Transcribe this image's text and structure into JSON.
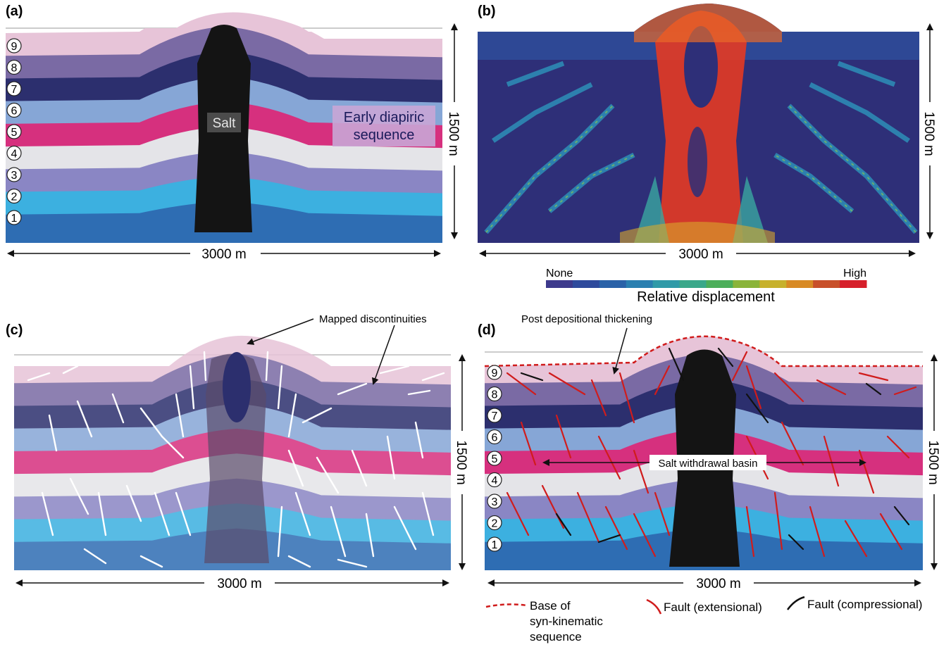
{
  "panels": {
    "a": {
      "label": "(a)",
      "salt_label": "Salt",
      "sequence_label_line1": "Early diapiric",
      "sequence_label_line2": "sequence"
    },
    "b": {
      "label": "(b)"
    },
    "c": {
      "label": "(c)",
      "annotation": "Mapped discontinuities"
    },
    "d": {
      "label": "(d)",
      "annotation_top": "Post depositional thickening",
      "basin_label": "Salt withdrawal basin"
    }
  },
  "dimensions": {
    "width": "3000 m",
    "height": "1500 m"
  },
  "layer_numbers": [
    "1",
    "2",
    "3",
    "4",
    "5",
    "6",
    "7",
    "8",
    "9"
  ],
  "colorbar": {
    "min_label": "None",
    "max_label": "High",
    "title": "Relative displacement",
    "colors": [
      "#3d3a8c",
      "#2e4a9c",
      "#2a62a8",
      "#2a7fb0",
      "#2f9aa8",
      "#3aa88a",
      "#4cae5a",
      "#8ab43a",
      "#c7b12c",
      "#d88a24",
      "#c8502a",
      "#d61f2a"
    ]
  },
  "layer_colors": [
    "#2e6db3",
    "#3cb0e0",
    "#8a86c4",
    "#e4e4e8",
    "#d6307e",
    "#86a6d6",
    "#2c2f6e",
    "#7a6aa4",
    "#e7c4d8"
  ],
  "legend": {
    "base_line1": "Base of",
    "base_line2": "syn-kinematic",
    "base_line3": "sequence",
    "fault_ext": "Fault (extensional)",
    "fault_comp": "Fault (compressional)",
    "base_color": "#d01c1c",
    "ext_color": "#d01c1c",
    "comp_color": "#111111"
  }
}
